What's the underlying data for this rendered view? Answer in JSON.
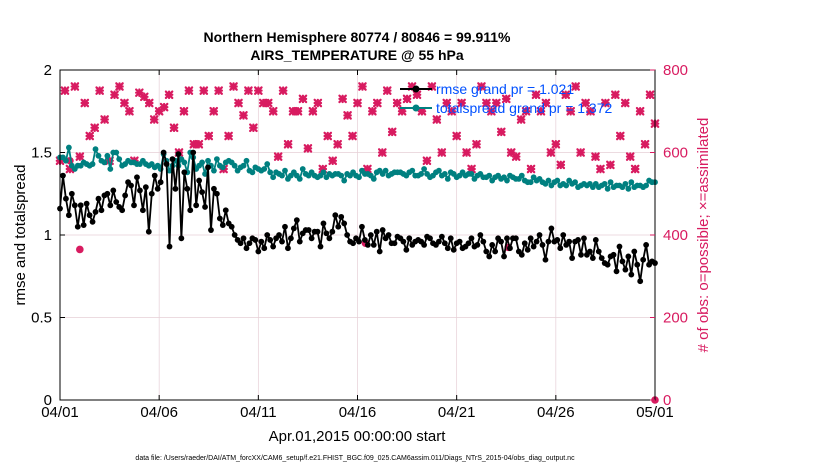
{
  "chart_data": {
    "type": "line",
    "title": [
      "Northern Hemisphere 80774 / 80846 = 99.911%",
      "AIRS_TEMPERATURE @ 55 hPa"
    ],
    "xlabel": "Apr.01,2015 00:00:00 start",
    "ylabel_left": "rmse and totalspread",
    "ylabel_right": "# of obs: o=possible; ×=assimilated",
    "footer": "data file: /Users/raeder/DAI/ATM_forcXX/CAM6_setup/f.e21.FHIST_BGC.f09_025.CAM6assim.011/Diags_NTrS_2015-04/obs_diag_output.nc",
    "x_ticks": [
      "04/01",
      "04/06",
      "04/11",
      "04/16",
      "04/21",
      "04/26",
      "05/01"
    ],
    "x_range_days": [
      0,
      30
    ],
    "ylim_left": [
      0,
      2
    ],
    "ylim_right": [
      0,
      800
    ],
    "yticks_left": [
      "0",
      "0.5",
      "1",
      "1.5",
      "2"
    ],
    "yticks_right": [
      "0",
      "200",
      "400",
      "600",
      "800"
    ],
    "grid": true,
    "legend_position": "top-right",
    "colors": {
      "rmse": "#000000",
      "spread": "#008080",
      "obs": "#d81b60",
      "legend_text": "#0050ff"
    },
    "series": [
      {
        "name": "rmse grand pr = 1.021",
        "axis": "left",
        "values": [
          1.16,
          1.36,
          1.22,
          1.12,
          1.25,
          1.18,
          1.05,
          1.18,
          1.06,
          1.19,
          1.12,
          1.08,
          1.14,
          1.22,
          1.15,
          1.24,
          1.25,
          1.18,
          1.27,
          1.2,
          1.17,
          1.15,
          1.24,
          1.32,
          1.3,
          1.18,
          1.35,
          1.27,
          1.15,
          1.29,
          1.02,
          1.25,
          1.36,
          1.28,
          1.32,
          1.5,
          1.43,
          0.93,
          1.46,
          1.28,
          1.49,
          0.98,
          1.38,
          1.28,
          1.15,
          1.5,
          1.18,
          1.33,
          1.26,
          1.17,
          1.41,
          1.03,
          1.28,
          1.25,
          1.1,
          1.06,
          1.15,
          1.07,
          1.05,
          1.0,
          0.97,
          0.95,
          0.98,
          0.92,
          0.95,
          0.98,
          0.97,
          0.9,
          0.96,
          0.92,
          1.0,
          0.97,
          0.93,
          0.98,
          1.0,
          0.96,
          1.05,
          0.92,
          0.98,
          1.04,
          1.09,
          0.96,
          1.01,
          1.03,
          1.03,
          0.98,
          1.02,
          1.02,
          0.93,
          1.07,
          1.01,
          0.98,
          1.02,
          1.12,
          1.05,
          1.11,
          1.07,
          1.0,
          0.96,
          0.95,
          0.98,
          0.96,
          1.05,
          0.97,
          0.94,
          1.0,
          0.94,
          1.02,
          0.9,
          1.03,
          0.98,
          1.0,
          0.95,
          0.95,
          0.99,
          0.98,
          0.96,
          0.91,
          0.98,
          0.94,
          0.96,
          0.97,
          0.96,
          0.94,
          0.99,
          0.98,
          0.95,
          0.94,
          0.96,
          0.99,
          0.95,
          0.92,
          0.98,
          0.91,
          0.95,
          0.96,
          0.92,
          0.93,
          0.95,
          0.98,
          0.93,
          0.94,
          1.0,
          0.96,
          0.9,
          0.87,
          0.94,
          0.9,
          0.98,
          0.96,
          0.87,
          0.98,
          0.92,
          0.98,
          0.98,
          0.9,
          0.88,
          0.95,
          0.91,
          0.98,
          0.93,
          0.96,
          1.0,
          0.94,
          0.85,
          0.96,
          1.04,
          0.96,
          0.97,
          0.92,
          1.0,
          0.94,
          0.96,
          0.86,
          0.96,
          0.97,
          0.88,
          0.98,
          0.88,
          0.9,
          0.86,
          0.97,
          0.9,
          0.86,
          0.83,
          0.82,
          0.87,
          0.88,
          0.78,
          0.93,
          0.84,
          0.79,
          0.87,
          0.76,
          0.9,
          0.82,
          0.72,
          0.85,
          0.94,
          0.82,
          0.84,
          0.83
        ]
      },
      {
        "name": "totalspread grand pr = 1.372",
        "axis": "left",
        "values": [
          1.47,
          1.47,
          1.45,
          1.53,
          1.42,
          1.4,
          1.42,
          1.42,
          1.44,
          1.43,
          1.42,
          1.43,
          1.52,
          1.48,
          1.45,
          1.44,
          1.48,
          1.4,
          1.5,
          1.5,
          1.46,
          1.42,
          1.43,
          1.45,
          1.44,
          1.44,
          1.43,
          1.43,
          1.45,
          1.43,
          1.42,
          1.43,
          1.41,
          1.42,
          1.4,
          1.49,
          1.45,
          1.39,
          1.42,
          1.45,
          1.42,
          1.46,
          1.44,
          1.38,
          1.5,
          1.47,
          1.4,
          1.42,
          1.44,
          1.37,
          1.45,
          1.42,
          1.39,
          1.46,
          1.42,
          1.41,
          1.44,
          1.45,
          1.44,
          1.42,
          1.39,
          1.41,
          1.42,
          1.45,
          1.39,
          1.38,
          1.41,
          1.4,
          1.39,
          1.4,
          1.43,
          1.38,
          1.35,
          1.38,
          1.37,
          1.36,
          1.39,
          1.34,
          1.36,
          1.38,
          1.36,
          1.34,
          1.4,
          1.37,
          1.36,
          1.38,
          1.36,
          1.35,
          1.36,
          1.38,
          1.35,
          1.37,
          1.36,
          1.37,
          1.37,
          1.36,
          1.33,
          1.37,
          1.36,
          1.38,
          1.36,
          1.35,
          1.39,
          1.37,
          1.37,
          1.36,
          1.34,
          1.38,
          1.39,
          1.37,
          1.39,
          1.36,
          1.37,
          1.38,
          1.38,
          1.38,
          1.37,
          1.36,
          1.38,
          1.39,
          1.36,
          1.36,
          1.37,
          1.4,
          1.37,
          1.35,
          1.36,
          1.38,
          1.39,
          1.36,
          1.37,
          1.34,
          1.38,
          1.37,
          1.35,
          1.36,
          1.38,
          1.36,
          1.37,
          1.37,
          1.34,
          1.36,
          1.37,
          1.35,
          1.35,
          1.36,
          1.33,
          1.35,
          1.36,
          1.34,
          1.35,
          1.33,
          1.36,
          1.35,
          1.34,
          1.34,
          1.36,
          1.33,
          1.32,
          1.32,
          1.35,
          1.33,
          1.34,
          1.32,
          1.31,
          1.33,
          1.3,
          1.32,
          1.33,
          1.3,
          1.31,
          1.3,
          1.33,
          1.31,
          1.32,
          1.29,
          1.3,
          1.31,
          1.3,
          1.31,
          1.29,
          1.31,
          1.29,
          1.3,
          1.31,
          1.28,
          1.32,
          1.29,
          1.3,
          1.3,
          1.29,
          1.31,
          1.28,
          1.32,
          1.29,
          1.3,
          1.3,
          1.29,
          1.3,
          1.33,
          1.32,
          1.32
        ]
      },
      {
        "name": "possible obs",
        "axis": "right",
        "marker": "circle",
        "x_days": [
          0.5,
          1.0,
          15.4,
          22.6,
          30.0
        ],
        "values": [
          580,
          365,
          380,
          370,
          0
        ]
      },
      {
        "name": "assimilated obs",
        "axis": "right",
        "marker": "x",
        "x_days": [
          0.0,
          0.25,
          0.5,
          0.75,
          1.0,
          1.25,
          1.5,
          1.75,
          2.0,
          2.25,
          2.5,
          2.75,
          3.0,
          3.25,
          3.5,
          3.75,
          4.0,
          4.25,
          4.5,
          4.75,
          5.0,
          5.25,
          5.5,
          5.75,
          6.0,
          6.25,
          6.5,
          6.75,
          7.0,
          7.25,
          7.5,
          7.75,
          8.0,
          8.25,
          8.5,
          8.75,
          9.0,
          9.25,
          9.5,
          9.75,
          10.0,
          10.25,
          10.5,
          10.75,
          11.0,
          11.25,
          11.5,
          11.75,
          12.0,
          12.25,
          12.5,
          12.75,
          13.0,
          13.25,
          13.5,
          13.75,
          14.0,
          14.25,
          14.5,
          14.75,
          15.0,
          15.25,
          15.5,
          15.75,
          16.0,
          16.25,
          16.5,
          16.75,
          17.0,
          17.25,
          17.5,
          17.75,
          18.0,
          18.25,
          18.5,
          18.75,
          19.0,
          19.25,
          19.5,
          19.75,
          20.0,
          20.25,
          20.5,
          20.75,
          21.0,
          21.25,
          21.5,
          21.75,
          22.0,
          22.25,
          22.5,
          22.75,
          23.0,
          23.25,
          23.5,
          23.75,
          24.0,
          24.25,
          24.5,
          24.75,
          25.0,
          25.25,
          25.5,
          25.75,
          26.0,
          26.25,
          26.5,
          26.75,
          27.0,
          27.25,
          27.5,
          27.75,
          28.0,
          28.25,
          28.5,
          28.75,
          29.0,
          29.25,
          29.5,
          29.75,
          30.0
        ],
        "values": [
          580,
          750,
          560,
          760,
          590,
          720,
          640,
          660,
          750,
          680,
          580,
          740,
          760,
          720,
          700,
          580,
          745,
          735,
          720,
          680,
          700,
          710,
          740,
          660,
          600,
          700,
          750,
          620,
          620,
          750,
          640,
          700,
          750,
          560,
          640,
          760,
          720,
          690,
          750,
          660,
          750,
          720,
          720,
          700,
          590,
          750,
          620,
          700,
          700,
          730,
          610,
          700,
          720,
          560,
          640,
          580,
          620,
          730,
          690,
          640,
          720,
          760,
          560,
          700,
          720,
          600,
          750,
          650,
          720,
          700,
          730,
          760,
          740,
          700,
          580,
          760,
          680,
          600,
          720,
          700,
          640,
          720,
          600,
          560,
          620,
          760,
          720,
          700,
          720,
          650,
          730,
          600,
          590,
          680,
          700,
          560,
          740,
          700,
          720,
          600,
          620,
          570,
          740,
          700,
          760,
          600,
          720,
          700,
          590,
          560,
          720,
          570,
          740,
          640,
          720,
          590,
          560,
          700,
          620,
          740,
          670
        ]
      }
    ]
  }
}
